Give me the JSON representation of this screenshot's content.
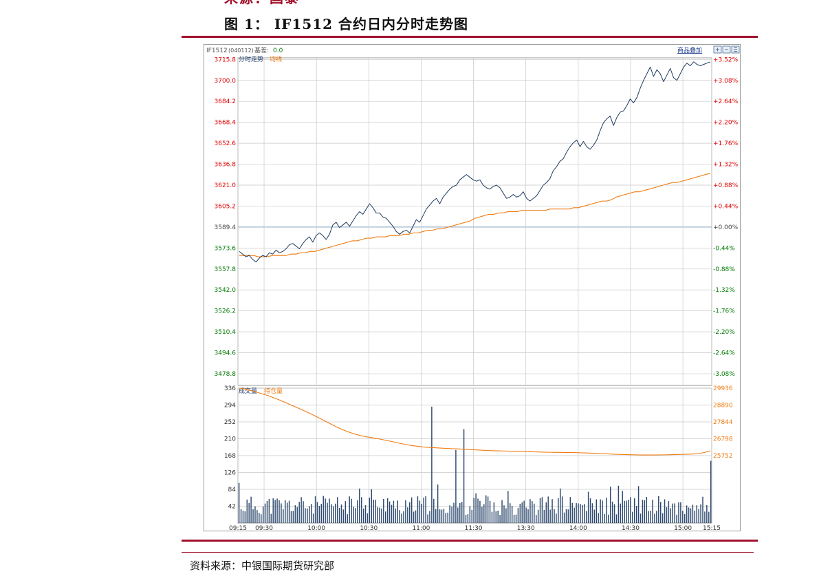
{
  "header": {
    "cut_text": "来源：国泰",
    "figure_title": "图 1： IF1512 合约日内分时走势图"
  },
  "footer": {
    "source": "资料来源：中银国际期货研究部"
  },
  "colors": {
    "accent": "#a0102a",
    "price_line": "#1f3a5f",
    "avg_line": "#f07b10",
    "up_text": "#e00000",
    "down_text": "#007a00",
    "volume_bar": "#2e4a6e",
    "grid": "#c8c8c8",
    "base_line": "#9fb3c8"
  },
  "chart_data": {
    "type": "line",
    "info_bar": {
      "symbol": "IF1512",
      "code": "(040112)",
      "basis_label": "基差:",
      "basis_value": "0.0",
      "overlay_label": "商品叠加"
    },
    "price_panel": {
      "legend": [
        "分时走势",
        "均线"
      ],
      "base_price": 3589.4,
      "ylim": [
        3470.0,
        3717.0
      ],
      "left_ticks": [
        "3715.8",
        "3700.0",
        "3684.2",
        "3668.4",
        "3652.6",
        "3636.8",
        "3621.0",
        "3605.2",
        "3589.4",
        "3573.6",
        "3557.8",
        "3542.0",
        "3526.2",
        "3510.4",
        "3494.6",
        "3478.8"
      ],
      "right_ticks": [
        "+3.52%",
        "+3.08%",
        "+2.64%",
        "+2.20%",
        "+1.76%",
        "+1.32%",
        "+0.88%",
        "+0.44%",
        "+0.00%",
        "-0.44%",
        "-0.88%",
        "-1.32%",
        "-1.76%",
        "-2.20%",
        "-2.64%",
        "-3.08%"
      ],
      "series": [
        {
          "name": "分时走势",
          "values": [
            3571,
            3569,
            3567,
            3568,
            3565,
            3563,
            3566,
            3568,
            3567,
            3570,
            3569,
            3572,
            3570,
            3571,
            3573,
            3576,
            3577,
            3575,
            3573,
            3577,
            3580,
            3582,
            3578,
            3583,
            3585,
            3583,
            3580,
            3584,
            3591,
            3593,
            3589,
            3591,
            3593,
            3590,
            3594,
            3598,
            3601,
            3599,
            3603,
            3607,
            3604,
            3600,
            3600,
            3597,
            3596,
            3593,
            3590,
            3586,
            3584,
            3586,
            3587,
            3585,
            3590,
            3595,
            3593,
            3598,
            3603,
            3606,
            3609,
            3611,
            3607,
            3612,
            3615,
            3618,
            3620,
            3621,
            3625,
            3627,
            3629,
            3627,
            3625,
            3624,
            3625,
            3621,
            3619,
            3618,
            3620,
            3621,
            3619,
            3615,
            3611,
            3612,
            3614,
            3612,
            3613,
            3616,
            3611,
            3609,
            3611,
            3613,
            3617,
            3621,
            3623,
            3626,
            3632,
            3635,
            3639,
            3641,
            3646,
            3650,
            3653,
            3655,
            3650,
            3654,
            3650,
            3648,
            3651,
            3655,
            3662,
            3668,
            3671,
            3673,
            3666,
            3672,
            3676,
            3677,
            3681,
            3686,
            3683,
            3687,
            3694,
            3700,
            3705,
            3710,
            3703,
            3708,
            3705,
            3699,
            3704,
            3709,
            3702,
            3700,
            3705,
            3710,
            3713,
            3711,
            3714,
            3712,
            3711,
            3712,
            3713,
            3714
          ]
        },
        {
          "name": "均线",
          "values": [
            3568,
            3568,
            3568,
            3568,
            3567,
            3567,
            3567,
            3568,
            3568,
            3568,
            3568,
            3569,
            3569,
            3570,
            3570,
            3571,
            3571,
            3572,
            3573,
            3574,
            3575,
            3576,
            3577,
            3578,
            3579,
            3579,
            3580,
            3581,
            3581,
            3582,
            3582,
            3582,
            3583,
            3583,
            3583,
            3584,
            3584,
            3585,
            3585,
            3586,
            3587,
            3587,
            3588,
            3588,
            3589,
            3590,
            3591,
            3592,
            3593,
            3594,
            3596,
            3597,
            3598,
            3599,
            3599,
            3600,
            3600,
            3601,
            3601,
            3601,
            3602,
            3602,
            3602,
            3602,
            3602,
            3602,
            3603,
            3603,
            3603,
            3603,
            3603,
            3604,
            3604,
            3605,
            3606,
            3607,
            3608,
            3609,
            3609,
            3610,
            3612,
            3613,
            3614,
            3615,
            3616,
            3616,
            3617,
            3618,
            3619,
            3620,
            3621,
            3622,
            3623,
            3623,
            3624,
            3625,
            3626,
            3627,
            3628,
            3629,
            3630
          ]
        }
      ]
    },
    "volume_panel": {
      "legend": [
        "成交量",
        "持仓量"
      ],
      "ylim": [
        0,
        336
      ],
      "left_ticks": [
        "336",
        "294",
        "252",
        "210",
        "168",
        "126",
        "84",
        "42"
      ],
      "right_ticks": [
        "29936",
        "28890",
        "27844",
        "26798",
        "25752"
      ],
      "open_interest": [
        29936,
        29880,
        29790,
        29690,
        29585,
        29470,
        29340,
        29200,
        29050,
        28890,
        28740,
        28580,
        28420,
        28250,
        28070,
        27880,
        27700,
        27520,
        27360,
        27220,
        27100,
        27000,
        26930,
        26870,
        26810,
        26740,
        26670,
        26590,
        26510,
        26440,
        26380,
        26330,
        26290,
        26260,
        26240,
        26220,
        26200,
        26180,
        26170,
        26150,
        26130,
        26110,
        26090,
        26070,
        26060,
        26050,
        26040,
        26030,
        26020,
        26010,
        26000,
        25990,
        25980,
        25970,
        25960,
        25950,
        25950,
        25940,
        25940,
        25930,
        25920,
        25910,
        25900,
        25880,
        25860,
        25840,
        25830,
        25820,
        25810,
        25800,
        25790,
        25790,
        25790,
        25795,
        25800,
        25810,
        25820,
        25830,
        25840,
        25850,
        25880,
        25950,
        26050
      ]
    },
    "x_ticks": [
      "09:15",
      "09:30",
      "10:00",
      "10:30",
      "11:00",
      "11:30",
      "13:30",
      "14:00",
      "14:30",
      "15:00",
      "15:15"
    ]
  }
}
